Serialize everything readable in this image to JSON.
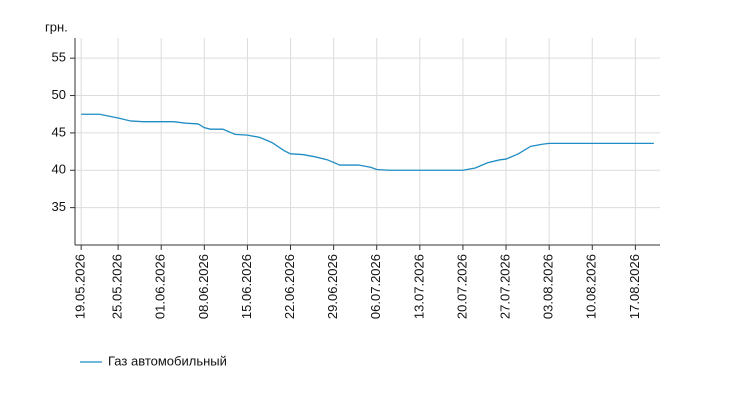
{
  "chart_data": {
    "type": "line",
    "y_label": "грн.",
    "x": [
      "19.05.2026",
      "22.05.2026",
      "25.05.2026",
      "27.05.2026",
      "29.05.2026",
      "01.06.2026",
      "03.06.2026",
      "05.06.2026",
      "07.06.2026",
      "08.06.2026",
      "09.06.2026",
      "11.06.2026",
      "13.06.2026",
      "15.06.2026",
      "17.06.2026",
      "19.06.2026",
      "21.06.2026",
      "22.06.2026",
      "24.06.2026",
      "26.06.2026",
      "28.06.2026",
      "30.06.2026",
      "03.07.2026",
      "05.07.2026",
      "06.07.2026",
      "08.07.2026",
      "20.07.2026",
      "22.07.2026",
      "24.07.2026",
      "26.07.2026",
      "27.07.2026",
      "29.07.2026",
      "31.07.2026",
      "02.08.2026",
      "03.08.2026",
      "20.08.2026"
    ],
    "series": [
      {
        "name": "Газ автомобильный",
        "color": "#1f8dc4",
        "values": [
          47.5,
          47.5,
          47.0,
          46.6,
          46.5,
          46.5,
          46.5,
          46.3,
          46.2,
          45.7,
          45.5,
          45.5,
          44.8,
          44.7,
          44.4,
          43.7,
          42.6,
          42.2,
          42.1,
          41.8,
          41.4,
          40.7,
          40.7,
          40.4,
          40.1,
          40.0,
          40.0,
          40.3,
          41.0,
          41.4,
          41.5,
          42.2,
          43.2,
          43.5,
          43.6,
          43.6
        ]
      }
    ],
    "xlim": [
      "18.05.2026",
      "21.08.2026"
    ],
    "xticks": [
      "19.05.2026",
      "25.05.2026",
      "01.06.2026",
      "08.06.2026",
      "15.06.2026",
      "22.06.2026",
      "29.06.2026",
      "06.07.2026",
      "13.07.2026",
      "20.07.2026",
      "27.07.2026",
      "03.08.2026",
      "10.08.2026",
      "17.08.2026"
    ],
    "ylim": [
      30,
      57.7
    ],
    "yticks": [
      35,
      40,
      45,
      50,
      55
    ],
    "grid": true,
    "legend": "bottom-left"
  }
}
